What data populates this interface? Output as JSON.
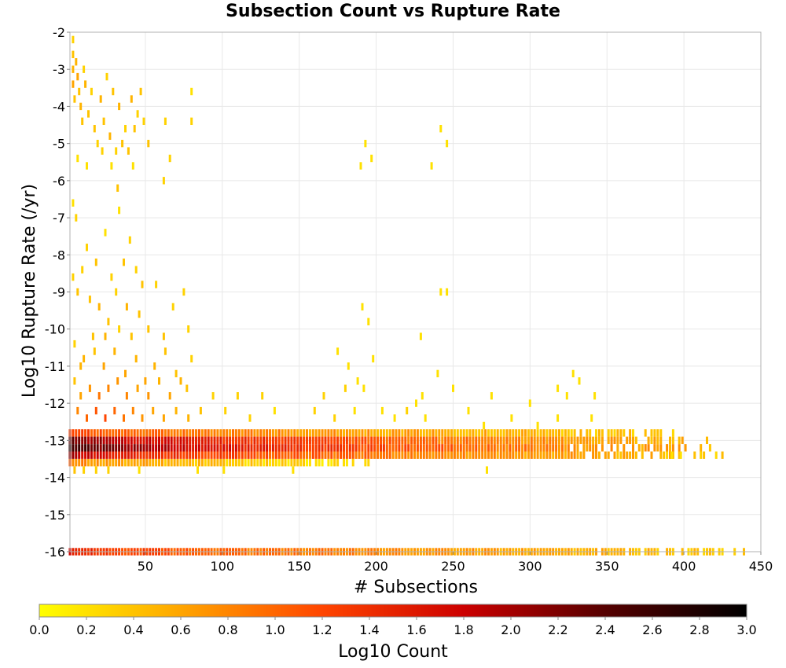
{
  "chart_data": {
    "type": "heatmap",
    "title": "Subsection Count vs Rupture Rate",
    "xlabel": "# Subsections",
    "ylabel": "Log10 Rupture Rate (/yr)",
    "xlim": [
      1,
      450
    ],
    "ylim": [
      -16,
      -2
    ],
    "x_ticks": [
      50,
      100,
      150,
      200,
      250,
      300,
      350,
      400,
      450
    ],
    "y_ticks": [
      -2,
      -3,
      -4,
      -5,
      -6,
      -7,
      -8,
      -9,
      -10,
      -11,
      -12,
      -13,
      -14,
      -15,
      -16
    ],
    "grid": true,
    "colorbar": {
      "label": "Log10 Count",
      "range": [
        0.0,
        3.0
      ],
      "ticks": [
        "0.0",
        "0.2",
        "0.4",
        "0.6",
        "0.8",
        "1.0",
        "1.2",
        "1.4",
        "1.6",
        "1.8",
        "2.0",
        "2.2",
        "2.4",
        "2.6",
        "2.8",
        "3.0"
      ],
      "colormap": [
        "#ffff00",
        "#ffa500",
        "#ff4500",
        "#cc0000",
        "#550000",
        "#000000"
      ]
    },
    "cell_height_log10": 0.2,
    "bands": [
      {
        "y": -16.0,
        "x": [
          1,
          445
        ],
        "c": [
          1.6,
          0.35
        ]
      },
      {
        "y": -12.8,
        "x": [
          1,
          400
        ],
        "c": [
          1.3,
          0.35
        ]
      },
      {
        "y": -13.0,
        "x": [
          1,
          415
        ],
        "c": [
          2.4,
          0.45
        ]
      },
      {
        "y": -13.2,
        "x": [
          1,
          420
        ],
        "c": [
          2.7,
          0.5
        ]
      },
      {
        "y": -13.4,
        "x": [
          1,
          425
        ],
        "c": [
          2.0,
          0.4
        ]
      },
      {
        "y": -13.6,
        "x": [
          1,
          200
        ],
        "c": [
          0.9,
          0.15
        ]
      }
    ],
    "points": [
      [
        3,
        -2.2,
        0.3
      ],
      [
        3,
        -2.6,
        0.4
      ],
      [
        3,
        -3.0,
        0.5
      ],
      [
        3,
        -3.4,
        0.6
      ],
      [
        4,
        -3.8,
        0.4
      ],
      [
        5,
        -2.8,
        0.5
      ],
      [
        6,
        -3.2,
        0.6
      ],
      [
        7,
        -3.6,
        0.4
      ],
      [
        8,
        -4.0,
        0.5
      ],
      [
        9,
        -4.4,
        0.4
      ],
      [
        10,
        -3.0,
        0.3
      ],
      [
        11,
        -3.4,
        0.5
      ],
      [
        13,
        -4.2,
        0.4
      ],
      [
        15,
        -3.6,
        0.3
      ],
      [
        17,
        -4.6,
        0.4
      ],
      [
        19,
        -5.0,
        0.3
      ],
      [
        21,
        -3.8,
        0.5
      ],
      [
        23,
        -4.4,
        0.4
      ],
      [
        25,
        -3.2,
        0.3
      ],
      [
        27,
        -4.8,
        0.5
      ],
      [
        29,
        -3.6,
        0.4
      ],
      [
        31,
        -5.2,
        0.3
      ],
      [
        33,
        -4.0,
        0.5
      ],
      [
        35,
        -5.0,
        0.4
      ],
      [
        37,
        -4.6,
        0.3
      ],
      [
        39,
        -5.2,
        0.4
      ],
      [
        41,
        -3.8,
        0.5
      ],
      [
        43,
        -4.6,
        0.4
      ],
      [
        45,
        -4.2,
        0.3
      ],
      [
        47,
        -3.6,
        0.4
      ],
      [
        49,
        -4.4,
        0.3
      ],
      [
        52,
        -5.0,
        0.4
      ],
      [
        63,
        -4.4,
        0.3
      ],
      [
        66,
        -5.4,
        0.3
      ],
      [
        80,
        -3.6,
        0.2
      ],
      [
        80,
        -4.4,
        0.3
      ],
      [
        6,
        -5.4,
        0.2
      ],
      [
        12,
        -5.6,
        0.2
      ],
      [
        22,
        -5.2,
        0.3
      ],
      [
        28,
        -5.6,
        0.2
      ],
      [
        32,
        -6.2,
        0.4
      ],
      [
        42,
        -5.6,
        0.2
      ],
      [
        62,
        -6.0,
        0.3
      ],
      [
        193,
        -5.0,
        0.2
      ],
      [
        197,
        -5.4,
        0.2
      ],
      [
        190,
        -5.6,
        0.2
      ],
      [
        242,
        -4.6,
        0.2
      ],
      [
        246,
        -5.0,
        0.2
      ],
      [
        236,
        -5.6,
        0.2
      ],
      [
        3,
        -6.6,
        0.2
      ],
      [
        5,
        -7.0,
        0.3
      ],
      [
        12,
        -7.8,
        0.3
      ],
      [
        18,
        -8.2,
        0.4
      ],
      [
        24,
        -7.4,
        0.2
      ],
      [
        28,
        -8.6,
        0.3
      ],
      [
        33,
        -6.8,
        0.2
      ],
      [
        36,
        -8.2,
        0.4
      ],
      [
        40,
        -7.6,
        0.3
      ],
      [
        44,
        -8.4,
        0.3
      ],
      [
        48,
        -8.8,
        0.4
      ],
      [
        3,
        -8.6,
        0.3
      ],
      [
        6,
        -9.0,
        0.4
      ],
      [
        9,
        -8.4,
        0.3
      ],
      [
        14,
        -9.2,
        0.4
      ],
      [
        20,
        -9.4,
        0.5
      ],
      [
        26,
        -9.8,
        0.4
      ],
      [
        31,
        -9.0,
        0.3
      ],
      [
        38,
        -9.4,
        0.5
      ],
      [
        46,
        -9.6,
        0.4
      ],
      [
        52,
        -10.0,
        0.4
      ],
      [
        57,
        -8.8,
        0.3
      ],
      [
        62,
        -10.2,
        0.4
      ],
      [
        68,
        -9.4,
        0.3
      ],
      [
        75,
        -9.0,
        0.3
      ],
      [
        78,
        -10.0,
        0.3
      ],
      [
        4,
        -10.4,
        0.3
      ],
      [
        10,
        -10.8,
        0.5
      ],
      [
        16,
        -10.2,
        0.4
      ],
      [
        23,
        -11.0,
        0.6
      ],
      [
        30,
        -10.6,
        0.5
      ],
      [
        37,
        -11.2,
        0.6
      ],
      [
        44,
        -10.8,
        0.5
      ],
      [
        50,
        -11.4,
        0.6
      ],
      [
        56,
        -11.0,
        0.5
      ],
      [
        63,
        -10.6,
        0.4
      ],
      [
        70,
        -11.2,
        0.4
      ],
      [
        77,
        -11.6,
        0.4
      ],
      [
        80,
        -10.8,
        0.3
      ],
      [
        4,
        -11.4,
        0.4
      ],
      [
        8,
        -11.8,
        0.6
      ],
      [
        14,
        -11.6,
        0.7
      ],
      [
        20,
        -11.8,
        0.9
      ],
      [
        26,
        -11.6,
        0.8
      ],
      [
        32,
        -11.4,
        0.7
      ],
      [
        38,
        -11.8,
        0.8
      ],
      [
        45,
        -11.6,
        0.6
      ],
      [
        52,
        -11.8,
        0.7
      ],
      [
        59,
        -11.4,
        0.5
      ],
      [
        66,
        -11.8,
        0.6
      ],
      [
        73,
        -11.4,
        0.5
      ],
      [
        6,
        -12.2,
        0.8
      ],
      [
        12,
        -12.4,
        1.0
      ],
      [
        18,
        -12.2,
        1.1
      ],
      [
        24,
        -12.4,
        1.2
      ],
      [
        30,
        -12.2,
        1.0
      ],
      [
        36,
        -12.4,
        0.9
      ],
      [
        42,
        -12.2,
        0.8
      ],
      [
        48,
        -12.4,
        0.7
      ],
      [
        55,
        -12.2,
        0.6
      ],
      [
        62,
        -12.4,
        0.6
      ],
      [
        70,
        -12.2,
        0.5
      ],
      [
        78,
        -12.4,
        0.5
      ],
      [
        86,
        -12.2,
        0.4
      ],
      [
        94,
        -11.8,
        0.3
      ],
      [
        102,
        -12.2,
        0.3
      ],
      [
        110,
        -11.8,
        0.3
      ],
      [
        118,
        -12.4,
        0.3
      ],
      [
        126,
        -11.8,
        0.3
      ],
      [
        134,
        -12.2,
        0.2
      ],
      [
        160,
        -12.2,
        0.3
      ],
      [
        166,
        -11.8,
        0.3
      ],
      [
        173,
        -12.4,
        0.3
      ],
      [
        180,
        -11.6,
        0.3
      ],
      [
        186,
        -12.2,
        0.2
      ],
      [
        192,
        -11.6,
        0.2
      ],
      [
        204,
        -12.2,
        0.2
      ],
      [
        212,
        -12.4,
        0.2
      ],
      [
        220,
        -12.2,
        0.3
      ],
      [
        226,
        -12.0,
        0.2
      ],
      [
        232,
        -12.4,
        0.2
      ],
      [
        8,
        -11.0,
        0.5
      ],
      [
        17,
        -10.6,
        0.4
      ],
      [
        24,
        -10.2,
        0.5
      ],
      [
        33,
        -10.0,
        0.3
      ],
      [
        41,
        -10.2,
        0.4
      ],
      [
        175,
        -10.6,
        0.2
      ],
      [
        182,
        -11.0,
        0.2
      ],
      [
        188,
        -11.4,
        0.2
      ],
      [
        198,
        -10.8,
        0.2
      ],
      [
        229,
        -10.2,
        0.2
      ],
      [
        191,
        -9.4,
        0.2
      ],
      [
        195,
        -9.8,
        0.2
      ],
      [
        242,
        -9.0,
        0.2
      ],
      [
        246,
        -9.0,
        0.2
      ],
      [
        230,
        -11.8,
        0.2
      ],
      [
        240,
        -11.2,
        0.2
      ],
      [
        250,
        -11.6,
        0.2
      ],
      [
        260,
        -12.2,
        0.2
      ],
      [
        275,
        -11.8,
        0.2
      ],
      [
        300,
        -12.0,
        0.2
      ],
      [
        318,
        -11.6,
        0.2
      ],
      [
        328,
        -11.2,
        0.2
      ],
      [
        332,
        -11.4,
        0.2
      ],
      [
        342,
        -11.8,
        0.2
      ],
      [
        324,
        -11.8,
        0.2
      ],
      [
        340,
        -12.4,
        0.2
      ],
      [
        270,
        -12.6,
        0.2
      ],
      [
        288,
        -12.4,
        0.2
      ],
      [
        305,
        -12.6,
        0.2
      ],
      [
        318,
        -12.4,
        0.2
      ],
      [
        4,
        -13.8,
        0.4
      ],
      [
        10,
        -13.8,
        0.3
      ],
      [
        18,
        -13.8,
        0.3
      ],
      [
        26,
        -13.8,
        0.3
      ],
      [
        46,
        -13.8,
        0.2
      ],
      [
        84,
        -13.8,
        0.2
      ],
      [
        101,
        -13.8,
        0.2
      ],
      [
        146,
        -13.8,
        0.2
      ],
      [
        272,
        -13.8,
        0.2
      ],
      [
        392,
        -13.4,
        0.2
      ],
      [
        398,
        -13.4,
        0.2
      ]
    ]
  }
}
